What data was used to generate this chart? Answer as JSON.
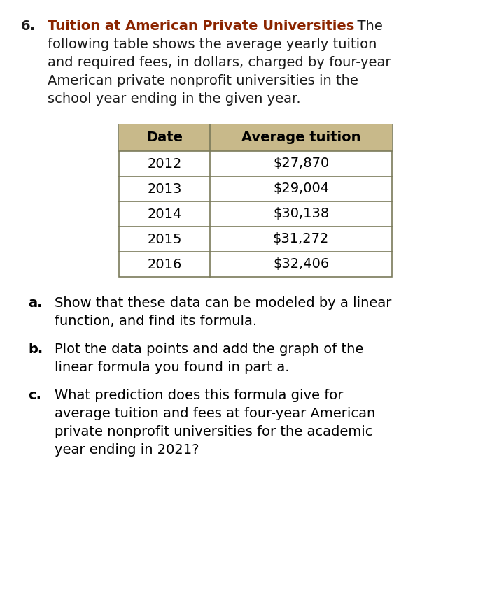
{
  "background_color": "#ffffff",
  "fig_width": 6.9,
  "fig_height": 8.81,
  "dpi": 100,
  "number": "6.",
  "title_bold": "Tuition at American Private Universities",
  "title_color": "#8B2500",
  "title_text_color": "#1a1a1a",
  "table_header": [
    "Date",
    "Average tuition"
  ],
  "table_data": [
    [
      "2012",
      "$27,870"
    ],
    [
      "2013",
      "$29,004"
    ],
    [
      "2014",
      "$30,138"
    ],
    [
      "2015",
      "$31,272"
    ],
    [
      "2016",
      "$32,406"
    ]
  ],
  "table_header_bg": "#c8b98a",
  "table_border_color": "#7a7a5a",
  "items": [
    {
      "label": "a.",
      "text": [
        "Show that these data can be modeled by a linear",
        "function, and find its formula."
      ]
    },
    {
      "label": "b.",
      "text": [
        "Plot the data points and add the graph of the",
        "linear formula you found in part a."
      ]
    },
    {
      "label": "c.",
      "text": [
        "What prediction does this formula give for",
        "average tuition and fees at four-year American",
        "private nonprofit universities for the academic",
        "year ending in 2021?"
      ]
    }
  ],
  "body_fontsize": 14,
  "header_fontsize": 14,
  "number_fontsize": 14,
  "table_fontsize": 14,
  "font_family": "DejaVu Sans"
}
